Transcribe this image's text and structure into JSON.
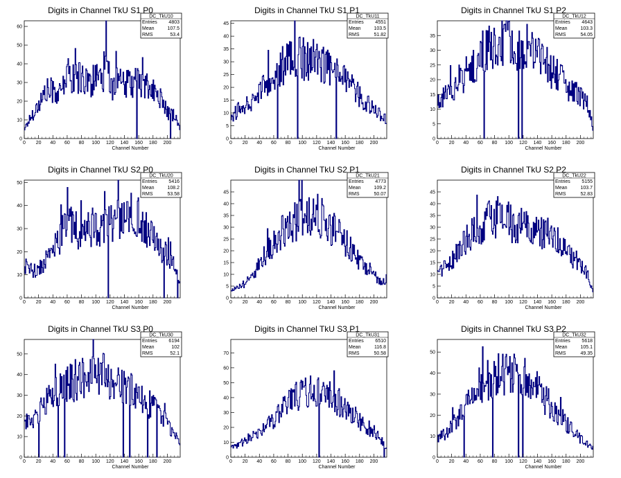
{
  "colors": {
    "histogram_line": "#000080",
    "axes": "#000000",
    "background": "#ffffff"
  },
  "chart_data": [
    {
      "type": "histogram",
      "title": "Digits in Channel TkU S1 P0",
      "xlabel": "Channel Number",
      "xlim": [
        0,
        218
      ],
      "ylim": [
        0,
        63
      ],
      "xticks": [
        0,
        20,
        40,
        60,
        80,
        100,
        120,
        140,
        160,
        180,
        200
      ],
      "yticks": [
        0,
        10,
        20,
        30,
        40,
        50,
        60
      ],
      "stats": {
        "name": "DC_TkU10",
        "Entries": "4803",
        "Mean": "107.5",
        "RMS": "53.4"
      },
      "series": [
        {
          "x": [
            0,
            10,
            20,
            30,
            40,
            50,
            60,
            70,
            80,
            90,
            100,
            110,
            115,
            120,
            130,
            140,
            150,
            160,
            170,
            180,
            190,
            200,
            210,
            218
          ],
          "values": [
            5,
            12,
            18,
            25,
            26,
            23,
            35,
            32,
            33,
            30,
            32,
            28,
            58,
            26,
            32,
            28,
            30,
            30,
            28,
            25,
            22,
            14,
            12,
            6
          ]
        }
      ]
    },
    {
      "type": "histogram",
      "title": "Digits in Channel TkU S1 P1",
      "xlabel": "Channel Number",
      "xlim": [
        0,
        218
      ],
      "ylim": [
        0,
        46
      ],
      "xticks": [
        0,
        20,
        40,
        60,
        80,
        100,
        120,
        140,
        160,
        180,
        200
      ],
      "yticks": [
        0,
        5,
        10,
        15,
        20,
        25,
        30,
        35,
        40,
        45
      ],
      "stats": {
        "name": "DC_TkU11",
        "Entries": "4551",
        "Mean": "103.5",
        "RMS": "51.82"
      },
      "series": [
        {
          "x": [
            0,
            10,
            20,
            30,
            40,
            50,
            60,
            70,
            80,
            90,
            100,
            110,
            120,
            130,
            140,
            150,
            160,
            170,
            180,
            190,
            200,
            210,
            218
          ],
          "values": [
            8,
            11,
            13,
            15,
            18,
            22,
            26,
            28,
            30,
            32,
            31,
            31,
            30,
            29,
            27,
            25,
            22,
            20,
            17,
            14,
            11,
            9,
            7
          ]
        }
      ]
    },
    {
      "type": "histogram",
      "title": "Digits in Channel TkU S1 P2",
      "xlabel": "Channel Number",
      "xlim": [
        0,
        218
      ],
      "ylim": [
        0,
        40
      ],
      "xticks": [
        0,
        20,
        40,
        60,
        80,
        100,
        120,
        140,
        160,
        180,
        200
      ],
      "yticks": [
        0,
        5,
        10,
        15,
        20,
        25,
        30,
        35
      ],
      "stats": {
        "name": "DC_TkU12",
        "Entries": "4643",
        "Mean": "103.3",
        "RMS": "54.05"
      },
      "series": [
        {
          "x": [
            0,
            10,
            20,
            30,
            40,
            50,
            60,
            70,
            80,
            90,
            100,
            110,
            120,
            130,
            140,
            150,
            160,
            170,
            180,
            190,
            200,
            210,
            218
          ],
          "values": [
            12,
            14,
            17,
            20,
            22,
            25,
            28,
            30,
            31,
            32,
            33,
            32,
            31,
            30,
            28,
            26,
            23,
            21,
            18,
            16,
            14,
            12,
            3
          ]
        }
      ]
    },
    {
      "type": "histogram",
      "title": "Digits in Channel TkU S2 P0",
      "xlabel": "Channel Number",
      "xlim": [
        0,
        218
      ],
      "ylim": [
        0,
        51
      ],
      "xticks": [
        0,
        20,
        40,
        60,
        80,
        100,
        120,
        140,
        160,
        180,
        200
      ],
      "yticks": [
        0,
        10,
        20,
        30,
        40,
        50
      ],
      "stats": {
        "name": "DC_TkU20",
        "Entries": "5416",
        "Mean": "108.2",
        "RMS": "53.58"
      },
      "series": [
        {
          "x": [
            0,
            10,
            20,
            30,
            40,
            50,
            60,
            70,
            80,
            90,
            100,
            110,
            120,
            130,
            140,
            150,
            160,
            170,
            180,
            190,
            200,
            210,
            218
          ],
          "values": [
            14,
            12,
            12,
            16,
            20,
            26,
            32,
            30,
            28,
            30,
            31,
            30,
            33,
            34,
            36,
            38,
            34,
            30,
            26,
            22,
            18,
            14,
            6
          ]
        }
      ]
    },
    {
      "type": "histogram",
      "title": "Digits in Channel TkU S2 P1",
      "xlabel": "Channel Number",
      "xlim": [
        0,
        218
      ],
      "ylim": [
        0,
        50
      ],
      "xticks": [
        0,
        20,
        40,
        60,
        80,
        100,
        120,
        140,
        160,
        180,
        200
      ],
      "yticks": [
        0,
        5,
        10,
        15,
        20,
        25,
        30,
        35,
        40,
        45
      ],
      "stats": {
        "name": "DC_TkU21",
        "Entries": "4773",
        "Mean": "109.2",
        "RMS": "50.07"
      },
      "series": [
        {
          "x": [
            0,
            10,
            20,
            30,
            40,
            50,
            60,
            70,
            80,
            90,
            100,
            110,
            120,
            130,
            140,
            150,
            160,
            170,
            180,
            190,
            200,
            210,
            218
          ],
          "values": [
            3,
            5,
            6,
            10,
            14,
            19,
            23,
            27,
            31,
            33,
            34,
            35,
            35,
            33,
            30,
            27,
            24,
            20,
            16,
            13,
            10,
            7,
            8
          ]
        }
      ]
    },
    {
      "type": "histogram",
      "title": "Digits in Channel TkU S2 P2",
      "xlabel": "Channel Number",
      "xlim": [
        0,
        218
      ],
      "ylim": [
        0,
        50
      ],
      "xticks": [
        0,
        20,
        40,
        60,
        80,
        100,
        120,
        140,
        160,
        180,
        200
      ],
      "yticks": [
        0,
        5,
        10,
        15,
        20,
        25,
        30,
        35,
        40,
        45
      ],
      "stats": {
        "name": "DC_TkU22",
        "Entries": "5155",
        "Mean": "103.7",
        "RMS": "52.83"
      },
      "series": [
        {
          "x": [
            0,
            10,
            20,
            30,
            40,
            50,
            60,
            70,
            80,
            90,
            100,
            110,
            120,
            130,
            140,
            150,
            160,
            170,
            180,
            190,
            200,
            210,
            218
          ],
          "values": [
            11,
            13,
            16,
            20,
            24,
            28,
            30,
            32,
            35,
            33,
            32,
            32,
            31,
            30,
            29,
            28,
            26,
            23,
            20,
            17,
            14,
            10,
            2
          ]
        }
      ]
    },
    {
      "type": "histogram",
      "title": "Digits in Channel TkU S3 P0",
      "xlabel": "Channel Number",
      "xlim": [
        0,
        218
      ],
      "ylim": [
        0,
        57
      ],
      "xticks": [
        0,
        20,
        40,
        60,
        80,
        100,
        120,
        140,
        160,
        180,
        200
      ],
      "yticks": [
        0,
        10,
        20,
        30,
        40,
        50
      ],
      "stats": {
        "name": "DC_TkU30",
        "Entries": "6194",
        "Mean": "102",
        "RMS": "52.1"
      },
      "series": [
        {
          "x": [
            0,
            10,
            20,
            30,
            40,
            50,
            60,
            70,
            80,
            90,
            100,
            110,
            120,
            130,
            140,
            150,
            160,
            170,
            180,
            190,
            200,
            210,
            218
          ],
          "values": [
            16,
            18,
            22,
            26,
            29,
            32,
            35,
            37,
            39,
            40,
            41,
            40,
            38,
            36,
            34,
            32,
            30,
            27,
            24,
            20,
            16,
            12,
            5
          ]
        }
      ]
    },
    {
      "type": "histogram",
      "title": "Digits in Channel TkU S3 P1",
      "xlabel": "Channel Number",
      "xlim": [
        0,
        218
      ],
      "ylim": [
        0,
        79
      ],
      "xticks": [
        0,
        20,
        40,
        60,
        80,
        100,
        120,
        140,
        160,
        180,
        200
      ],
      "yticks": [
        0,
        10,
        20,
        30,
        40,
        50,
        60,
        70
      ],
      "stats": {
        "name": "DC_TkU31",
        "Entries": "6510",
        "Mean": "116.8",
        "RMS": "50.58"
      },
      "series": [
        {
          "x": [
            0,
            10,
            20,
            30,
            40,
            50,
            60,
            70,
            80,
            90,
            100,
            110,
            120,
            130,
            140,
            150,
            160,
            170,
            180,
            190,
            200,
            210,
            218
          ],
          "values": [
            6,
            8,
            11,
            14,
            17,
            21,
            25,
            30,
            35,
            40,
            43,
            44,
            45,
            43,
            40,
            37,
            33,
            29,
            25,
            21,
            17,
            12,
            5
          ]
        }
      ]
    },
    {
      "type": "histogram",
      "title": "Digits in Channel TkU S3 P2",
      "xlabel": "Channel Number",
      "xlim": [
        0,
        218
      ],
      "ylim": [
        0,
        56
      ],
      "xticks": [
        0,
        20,
        40,
        60,
        80,
        100,
        120,
        140,
        160,
        180,
        200
      ],
      "yticks": [
        0,
        10,
        20,
        30,
        40,
        50
      ],
      "stats": {
        "name": "DC_TkU32",
        "Entries": "5618",
        "Mean": "105.1",
        "RMS": "49.35"
      },
      "series": [
        {
          "x": [
            0,
            10,
            20,
            30,
            40,
            50,
            60,
            70,
            80,
            90,
            100,
            110,
            120,
            130,
            140,
            150,
            160,
            170,
            180,
            190,
            200,
            210,
            218
          ],
          "values": [
            9,
            11,
            15,
            20,
            25,
            30,
            34,
            37,
            39,
            40,
            41,
            40,
            38,
            35,
            32,
            28,
            24,
            20,
            16,
            12,
            9,
            6,
            4
          ]
        }
      ]
    }
  ]
}
